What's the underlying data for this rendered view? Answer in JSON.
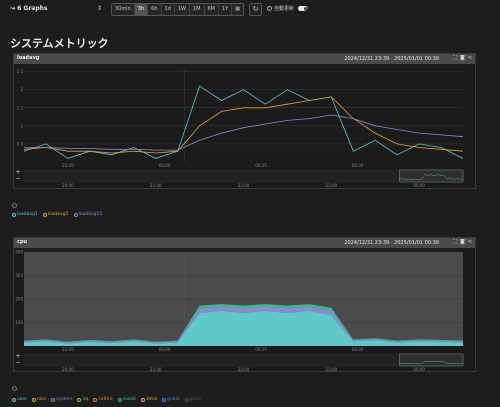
{
  "topbar": {
    "graphs_label": "6 Graphs",
    "sort_glyph": "⇕",
    "ranges": [
      "30min",
      "3h",
      "6h",
      "1d",
      "1W",
      "1M",
      "6M",
      "1Y"
    ],
    "active_range": "3h",
    "calendar_icon": "calendar-icon",
    "refresh_glyph": "↻",
    "auto_refresh_label": "自動更新"
  },
  "page": {
    "title": "システムメトリック"
  },
  "panels": [
    {
      "name": "loadavg",
      "range": "2024/12/31 23:39 - 2025/01/01 00:39",
      "y_ticks": [
        "2.5",
        "2",
        "1.5",
        "1",
        "0.5"
      ],
      "x_ticks": [
        "23:45",
        "00:00",
        "00:15",
        "00:30"
      ],
      "nav_ticks": [
        "20:00",
        "21:00",
        "22:00",
        "23:00",
        "00:00"
      ],
      "legend": [
        {
          "label": "loadavg1",
          "color": "#5fc9c9"
        },
        {
          "label": "loadavg5",
          "color": "#e0a23b"
        },
        {
          "label": "loadavg15",
          "color": "#8b8bd4"
        }
      ]
    },
    {
      "name": "cpu",
      "range": "2024/12/31 23:39 - 2025/01/01 00:39",
      "y_ticks": [
        "400",
        "300",
        "200",
        "100"
      ],
      "x_ticks": [
        "23:45",
        "00:00",
        "00:15",
        "00:30"
      ],
      "nav_ticks": [
        "20:00",
        "21:00",
        "22:00",
        "23:00",
        "00:00"
      ],
      "legend": [
        {
          "label": "user",
          "color": "#5fc9c9"
        },
        {
          "label": "nice",
          "color": "#e0a23b"
        },
        {
          "label": "system",
          "color": "#8b8bd4"
        },
        {
          "label": "irq",
          "color": "#8fbf4a"
        },
        {
          "label": "softirq",
          "color": "#e07b3b"
        },
        {
          "label": "iowait",
          "color": "#3dbb8c"
        },
        {
          "label": "steal",
          "color": "#d4b24a"
        },
        {
          "label": "guest",
          "color": "#4a86d4"
        },
        {
          "label": "gnice",
          "color": "#555555"
        }
      ]
    }
  ],
  "chart_data": [
    {
      "type": "line",
      "title": "loadavg",
      "x": [
        "23:39",
        "23:42",
        "23:45",
        "23:48",
        "23:51",
        "23:54",
        "23:57",
        "00:00",
        "00:03",
        "00:06",
        "00:09",
        "00:12",
        "00:15",
        "00:18",
        "00:21",
        "00:24",
        "00:27",
        "00:30",
        "00:33",
        "00:36",
        "00:39"
      ],
      "ylim": [
        0,
        2.6
      ],
      "series": [
        {
          "name": "loadavg1",
          "color": "#5fc9c9",
          "values": [
            0.3,
            0.5,
            0.1,
            0.3,
            0.2,
            0.4,
            0.1,
            0.3,
            2.1,
            1.7,
            2.0,
            1.6,
            2.0,
            1.7,
            1.8,
            0.3,
            0.6,
            0.2,
            0.5,
            0.4,
            0.1
          ]
        },
        {
          "name": "loadavg5",
          "color": "#e0a23b",
          "values": [
            0.35,
            0.4,
            0.3,
            0.3,
            0.25,
            0.3,
            0.25,
            0.3,
            1.0,
            1.4,
            1.5,
            1.5,
            1.6,
            1.7,
            1.8,
            1.2,
            0.8,
            0.5,
            0.4,
            0.35,
            0.3
          ]
        },
        {
          "name": "loadavg15",
          "color": "#8b8bd4",
          "values": [
            0.4,
            0.4,
            0.38,
            0.37,
            0.35,
            0.35,
            0.33,
            0.33,
            0.6,
            0.8,
            0.95,
            1.05,
            1.15,
            1.2,
            1.3,
            1.2,
            1.0,
            0.9,
            0.8,
            0.75,
            0.7
          ]
        }
      ]
    },
    {
      "type": "area",
      "title": "cpu",
      "x": [
        "23:39",
        "23:42",
        "23:45",
        "23:48",
        "23:51",
        "23:54",
        "23:57",
        "00:00",
        "00:03",
        "00:06",
        "00:09",
        "00:12",
        "00:15",
        "00:18",
        "00:21",
        "00:24",
        "00:27",
        "00:30",
        "00:33",
        "00:36",
        "00:39"
      ],
      "ylim": [
        0,
        400
      ],
      "series": [
        {
          "name": "user",
          "color": "#5fc9c9",
          "values": [
            15,
            20,
            10,
            18,
            12,
            20,
            10,
            15,
            140,
            150,
            140,
            150,
            140,
            150,
            130,
            20,
            25,
            15,
            20,
            18,
            15
          ]
        },
        {
          "name": "system",
          "color": "#8b8bd4",
          "values": [
            5,
            5,
            5,
            5,
            5,
            5,
            5,
            5,
            20,
            18,
            20,
            18,
            20,
            18,
            20,
            5,
            5,
            5,
            5,
            5,
            5
          ]
        },
        {
          "name": "iowait",
          "color": "#3dbb8c",
          "values": [
            3,
            3,
            3,
            3,
            3,
            3,
            3,
            3,
            12,
            10,
            12,
            10,
            12,
            10,
            12,
            3,
            3,
            3,
            3,
            3,
            3
          ]
        }
      ]
    }
  ]
}
